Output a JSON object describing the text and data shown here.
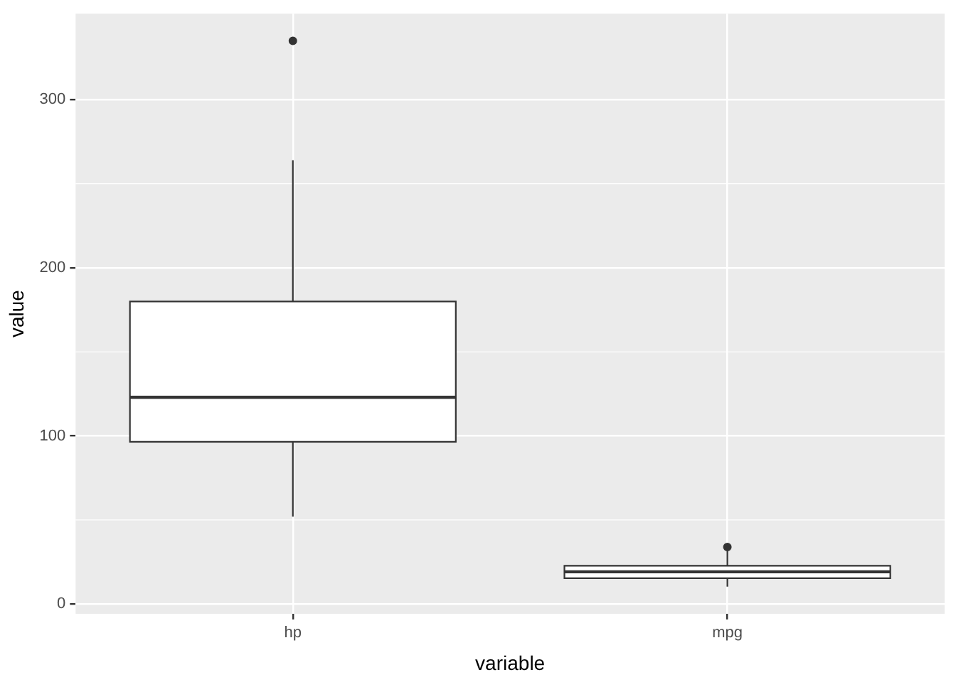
{
  "chart_data": {
    "type": "box",
    "xlabel": "variable",
    "ylabel": "value",
    "categories": [
      "hp",
      "mpg"
    ],
    "boxes": [
      {
        "low": 52,
        "q1": 96.5,
        "median": 123,
        "q3": 180,
        "high": 264,
        "outliers": [
          335
        ]
      },
      {
        "low": 10.4,
        "q1": 15.4,
        "median": 19.2,
        "q3": 22.8,
        "high": 32.4,
        "outliers": [
          33.9
        ]
      }
    ],
    "ylim": [
      -5.8,
      351.2
    ],
    "yticks": [
      0,
      100,
      200,
      300
    ],
    "grid": true
  }
}
